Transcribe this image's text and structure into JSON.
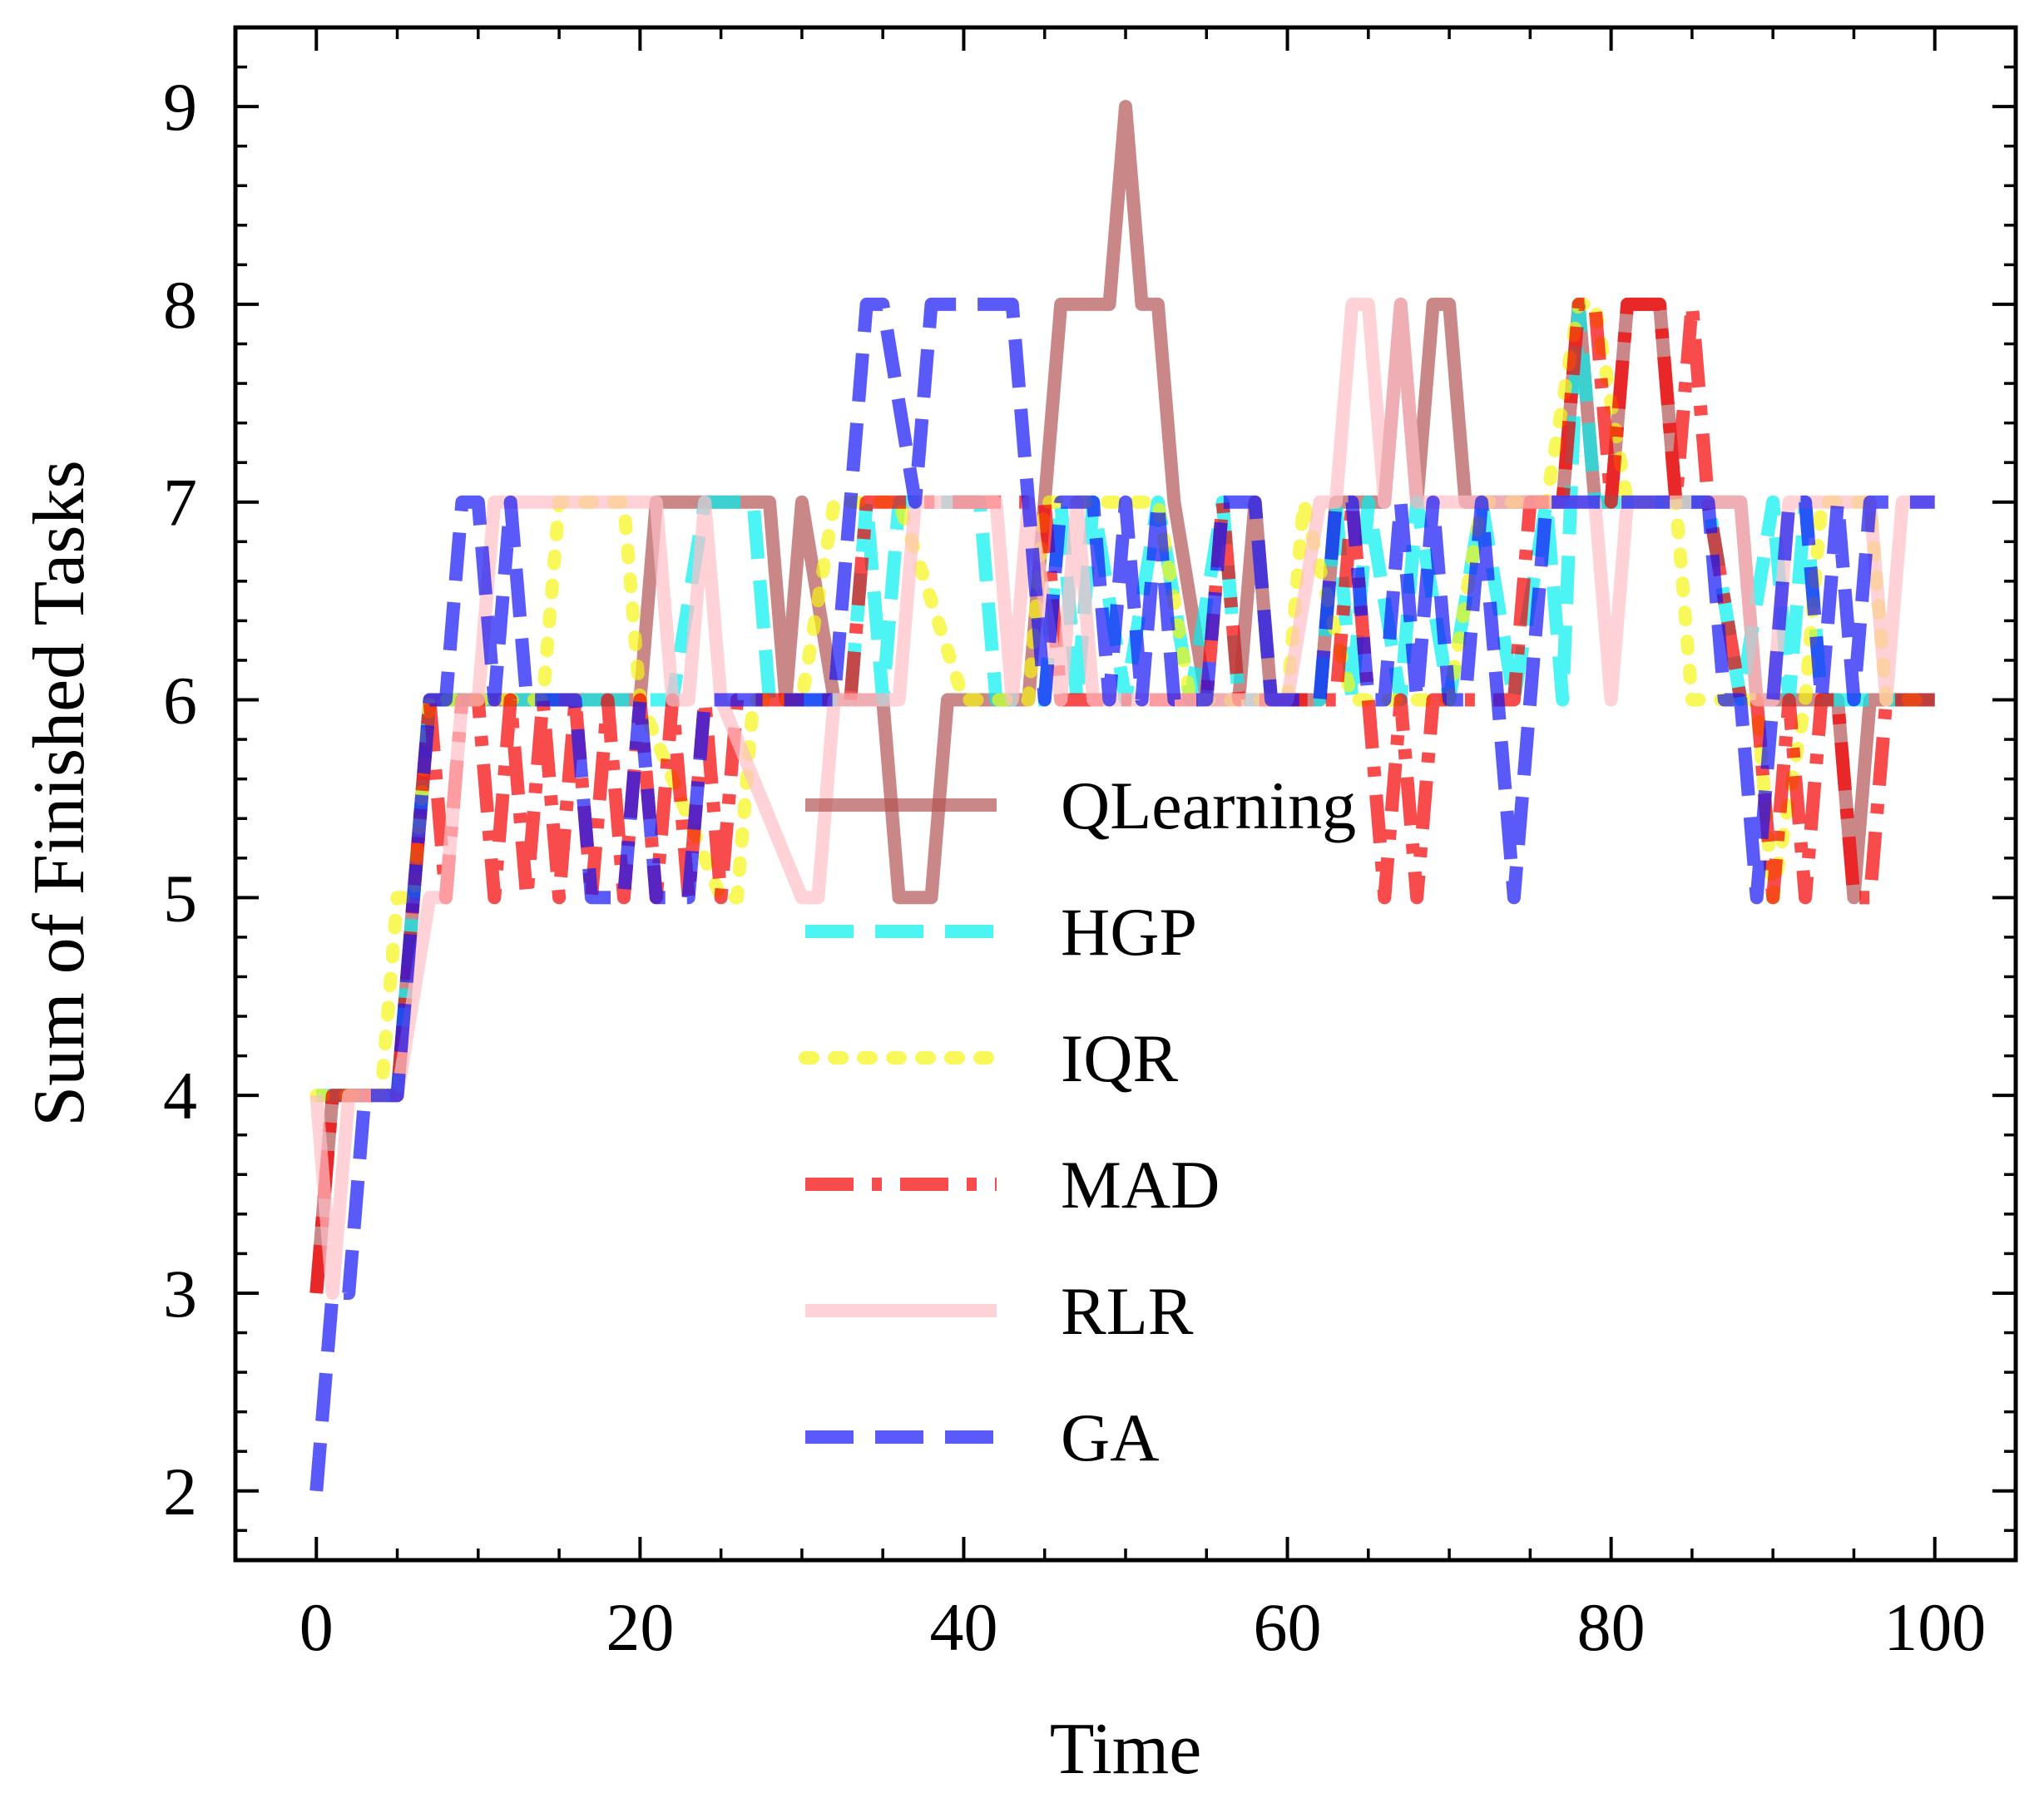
{
  "chart_data": {
    "type": "line",
    "title": "",
    "xlabel": "Time",
    "ylabel": "Sum of Finished Tasks",
    "xlim": [
      -5,
      105
    ],
    "ylim": [
      1.65,
      9.4
    ],
    "xticks": [
      0,
      20,
      40,
      60,
      80,
      100
    ],
    "xtick_labels": [
      "0",
      "20",
      "40",
      "60",
      "80",
      "100"
    ],
    "yticks": [
      2,
      3,
      4,
      5,
      6,
      7,
      8,
      9
    ],
    "ytick_labels": [
      "2",
      "3",
      "4",
      "5",
      "6",
      "7",
      "8",
      "9"
    ],
    "grid": false,
    "legend_position": "center",
    "series": [
      {
        "name": "QLearning",
        "color": "#b35454",
        "dash": "solid",
        "points": [
          [
            0,
            3
          ],
          [
            1,
            4
          ],
          [
            5,
            4
          ],
          [
            7,
            6
          ],
          [
            20,
            6
          ],
          [
            21,
            7
          ],
          [
            28,
            7
          ],
          [
            29,
            6
          ],
          [
            30,
            7
          ],
          [
            32,
            6
          ],
          [
            35,
            6
          ],
          [
            36,
            5
          ],
          [
            38,
            5
          ],
          [
            39,
            6
          ],
          [
            44,
            6
          ],
          [
            45,
            7
          ],
          [
            46,
            8
          ],
          [
            49,
            8
          ],
          [
            50,
            9
          ],
          [
            51,
            8
          ],
          [
            52,
            8
          ],
          [
            53,
            7
          ],
          [
            55,
            6
          ],
          [
            57,
            6
          ],
          [
            58,
            7
          ],
          [
            59,
            6
          ],
          [
            62,
            6
          ],
          [
            63,
            7
          ],
          [
            66,
            7
          ],
          [
            67,
            8
          ],
          [
            68,
            7
          ],
          [
            69,
            8
          ],
          [
            70,
            8
          ],
          [
            71,
            7
          ],
          [
            77,
            7
          ],
          [
            78,
            8
          ],
          [
            79,
            7
          ],
          [
            80,
            7
          ],
          [
            81,
            8
          ],
          [
            83,
            8
          ],
          [
            84,
            7
          ],
          [
            88,
            7
          ],
          [
            89,
            6
          ],
          [
            94,
            6
          ],
          [
            95,
            5
          ],
          [
            96,
            6
          ],
          [
            100,
            6
          ]
        ]
      },
      {
        "name": "HGP",
        "color": "#00f0f0",
        "dash": "dashed",
        "points": [
          [
            0,
            4
          ],
          [
            1,
            4
          ],
          [
            5,
            4
          ],
          [
            7,
            6
          ],
          [
            21,
            6
          ],
          [
            22,
            6
          ],
          [
            24,
            7
          ],
          [
            27,
            7
          ],
          [
            28,
            6
          ],
          [
            33,
            6
          ],
          [
            34,
            7
          ],
          [
            35,
            6
          ],
          [
            36,
            7
          ],
          [
            41,
            7
          ],
          [
            42,
            6
          ],
          [
            45,
            6
          ],
          [
            46,
            7
          ],
          [
            47,
            6
          ],
          [
            48,
            7
          ],
          [
            50,
            6
          ],
          [
            52,
            7
          ],
          [
            54,
            6
          ],
          [
            56,
            7
          ],
          [
            57,
            6
          ],
          [
            62,
            6
          ],
          [
            63,
            7
          ],
          [
            64,
            6
          ],
          [
            65,
            7
          ],
          [
            67,
            6
          ],
          [
            68,
            7
          ],
          [
            70,
            6
          ],
          [
            72,
            7
          ],
          [
            74,
            6
          ],
          [
            76,
            7
          ],
          [
            77,
            6
          ],
          [
            78,
            8
          ],
          [
            79,
            7
          ],
          [
            86,
            7
          ],
          [
            88,
            6
          ],
          [
            90,
            7
          ],
          [
            91,
            6
          ],
          [
            92,
            7
          ],
          [
            93,
            6
          ],
          [
            100,
            6
          ]
        ]
      },
      {
        "name": "IQR",
        "color": "#f5f516",
        "dash": "dotted",
        "points": [
          [
            0,
            4
          ],
          [
            1,
            4
          ],
          [
            4,
            4
          ],
          [
            5,
            5
          ],
          [
            6,
            5
          ],
          [
            7,
            6
          ],
          [
            14,
            6
          ],
          [
            15,
            7
          ],
          [
            19,
            7
          ],
          [
            20,
            6
          ],
          [
            25,
            5
          ],
          [
            26,
            5
          ],
          [
            27,
            6
          ],
          [
            30,
            6
          ],
          [
            32,
            7
          ],
          [
            36,
            7
          ],
          [
            40,
            6
          ],
          [
            44,
            6
          ],
          [
            45,
            7
          ],
          [
            52,
            7
          ],
          [
            54,
            6
          ],
          [
            60,
            6
          ],
          [
            61,
            7
          ],
          [
            64,
            6
          ],
          [
            70,
            6
          ],
          [
            72,
            7
          ],
          [
            76,
            7
          ],
          [
            78,
            8
          ],
          [
            79,
            8
          ],
          [
            81,
            7
          ],
          [
            84,
            7
          ],
          [
            85,
            6
          ],
          [
            87,
            6
          ],
          [
            89,
            6
          ],
          [
            90,
            5
          ],
          [
            92,
            6
          ],
          [
            93,
            7
          ],
          [
            96,
            7
          ],
          [
            97,
            6
          ],
          [
            100,
            6
          ]
        ]
      },
      {
        "name": "MAD",
        "color": "#f50000",
        "dash": "dashdot",
        "points": [
          [
            0,
            3
          ],
          [
            1,
            4
          ],
          [
            5,
            4
          ],
          [
            7,
            6
          ],
          [
            8,
            5
          ],
          [
            9,
            6
          ],
          [
            10,
            6
          ],
          [
            11,
            5
          ],
          [
            12,
            6
          ],
          [
            13,
            5
          ],
          [
            14,
            6
          ],
          [
            15,
            5
          ],
          [
            16,
            6
          ],
          [
            17,
            5
          ],
          [
            18,
            6
          ],
          [
            19,
            5
          ],
          [
            20,
            6
          ],
          [
            21,
            5
          ],
          [
            22,
            6
          ],
          [
            23,
            5
          ],
          [
            24,
            6
          ],
          [
            25,
            5
          ],
          [
            26,
            6
          ],
          [
            33,
            6
          ],
          [
            34,
            7
          ],
          [
            45,
            7
          ],
          [
            46,
            6
          ],
          [
            55,
            6
          ],
          [
            56,
            7
          ],
          [
            57,
            6
          ],
          [
            63,
            6
          ],
          [
            64,
            7
          ],
          [
            65,
            6
          ],
          [
            66,
            5
          ],
          [
            67,
            6
          ],
          [
            68,
            5
          ],
          [
            69,
            6
          ],
          [
            74,
            6
          ],
          [
            75,
            7
          ],
          [
            77,
            7
          ],
          [
            78,
            8
          ],
          [
            79,
            8
          ],
          [
            80,
            7
          ],
          [
            81,
            8
          ],
          [
            83,
            8
          ],
          [
            84,
            7
          ],
          [
            85,
            8
          ],
          [
            86,
            7
          ],
          [
            88,
            6
          ],
          [
            89,
            6
          ],
          [
            90,
            5
          ],
          [
            91,
            6
          ],
          [
            92,
            5
          ],
          [
            93,
            6
          ],
          [
            94,
            6
          ],
          [
            95,
            5
          ],
          [
            96,
            5
          ],
          [
            97,
            6
          ],
          [
            100,
            6
          ]
        ]
      },
      {
        "name": "RLR",
        "color": "#ffbfc6",
        "dash": "solid",
        "points": [
          [
            0,
            4
          ],
          [
            1,
            3
          ],
          [
            2,
            4
          ],
          [
            5,
            4
          ],
          [
            7,
            5
          ],
          [
            8,
            5
          ],
          [
            9,
            6
          ],
          [
            10,
            6
          ],
          [
            11,
            7
          ],
          [
            21,
            7
          ],
          [
            22,
            6
          ],
          [
            23,
            6
          ],
          [
            24,
            7
          ],
          [
            25,
            6
          ],
          [
            30,
            5
          ],
          [
            31,
            5
          ],
          [
            32,
            6
          ],
          [
            36,
            6
          ],
          [
            37,
            7
          ],
          [
            42,
            7
          ],
          [
            43,
            6
          ],
          [
            44,
            7
          ],
          [
            46,
            6
          ],
          [
            47,
            7
          ],
          [
            48,
            6
          ],
          [
            60,
            6
          ],
          [
            62,
            7
          ],
          [
            63,
            7
          ],
          [
            64,
            8
          ],
          [
            65,
            8
          ],
          [
            66,
            7
          ],
          [
            67,
            8
          ],
          [
            68,
            7
          ],
          [
            79,
            7
          ],
          [
            80,
            6
          ],
          [
            81,
            7
          ],
          [
            88,
            7
          ],
          [
            89,
            6
          ],
          [
            90,
            6
          ],
          [
            91,
            7
          ],
          [
            96,
            7
          ],
          [
            97,
            6
          ],
          [
            98,
            7
          ],
          [
            100,
            7
          ]
        ]
      },
      {
        "name": "GA",
        "color": "#1414f5",
        "dash": "dashed",
        "points": [
          [
            0,
            2
          ],
          [
            1,
            3
          ],
          [
            2,
            3
          ],
          [
            3,
            4
          ],
          [
            5,
            4
          ],
          [
            6,
            5
          ],
          [
            7,
            6
          ],
          [
            8,
            6
          ],
          [
            9,
            7
          ],
          [
            10,
            7
          ],
          [
            11,
            6
          ],
          [
            12,
            7
          ],
          [
            13,
            6
          ],
          [
            16,
            6
          ],
          [
            17,
            5
          ],
          [
            19,
            5
          ],
          [
            20,
            6
          ],
          [
            21,
            5
          ],
          [
            23,
            5
          ],
          [
            24,
            6
          ],
          [
            32,
            6
          ],
          [
            33,
            7
          ],
          [
            34,
            8
          ],
          [
            35,
            8
          ],
          [
            37,
            7
          ],
          [
            38,
            8
          ],
          [
            43,
            8
          ],
          [
            45,
            6
          ],
          [
            46,
            7
          ],
          [
            48,
            7
          ],
          [
            49,
            6
          ],
          [
            50,
            7
          ],
          [
            51,
            6
          ],
          [
            52,
            7
          ],
          [
            53,
            6
          ],
          [
            55,
            6
          ],
          [
            56,
            7
          ],
          [
            58,
            7
          ],
          [
            59,
            6
          ],
          [
            62,
            6
          ],
          [
            63,
            7
          ],
          [
            64,
            7
          ],
          [
            65,
            6
          ],
          [
            66,
            6
          ],
          [
            67,
            7
          ],
          [
            68,
            6
          ],
          [
            69,
            7
          ],
          [
            70,
            6
          ],
          [
            71,
            6
          ],
          [
            72,
            7
          ],
          [
            73,
            6
          ],
          [
            74,
            5
          ],
          [
            75,
            6
          ],
          [
            76,
            7
          ],
          [
            86,
            7
          ],
          [
            87,
            6
          ],
          [
            88,
            6
          ],
          [
            89,
            5
          ],
          [
            90,
            6
          ],
          [
            91,
            7
          ],
          [
            92,
            7
          ],
          [
            93,
            6
          ],
          [
            94,
            7
          ],
          [
            95,
            6
          ],
          [
            96,
            7
          ],
          [
            100,
            7
          ]
        ]
      }
    ]
  }
}
